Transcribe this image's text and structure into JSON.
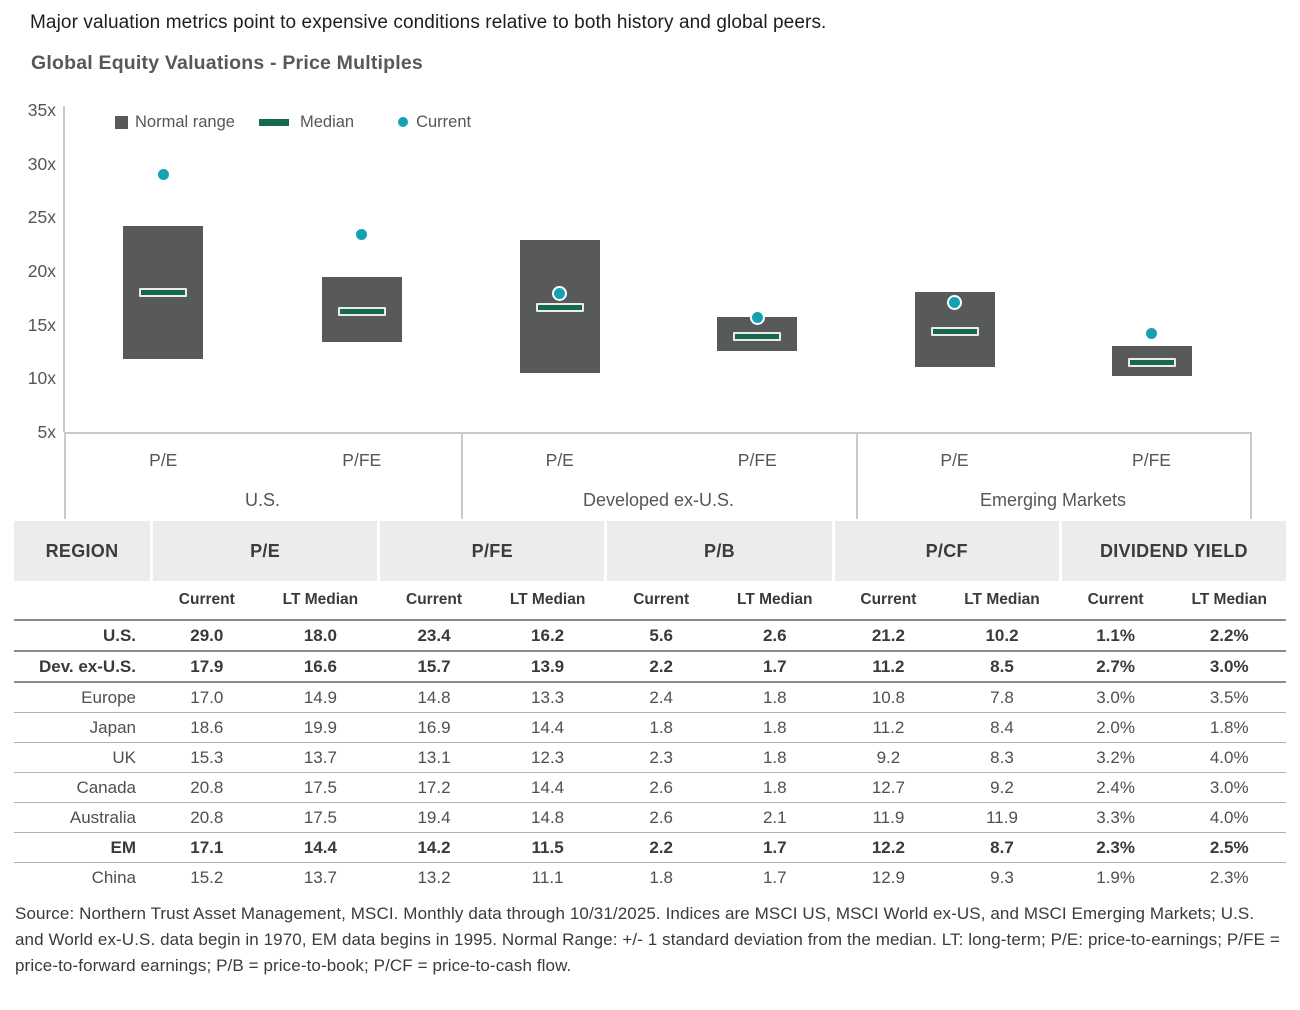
{
  "page": {
    "headline": "Major valuation metrics point to expensive conditions relative to both history and global peers.",
    "chart_title": "Global Equity Valuations - Price Multiples",
    "source_note": "Source: Northern Trust Asset Management, MSCI. Monthly data through 10/31/2025. Indices are MSCI US, MSCI World ex-US, and MSCI Emerging Markets; U.S. and World ex-U.S. data begin in 1970, EM data begins in 1995. Normal Range: +/- 1 standard deviation from the median.  LT: long-term; P/E: price-to-earnings; P/FE = price-to-forward earnings; P/B = price-to-book; P/CF = price-to-cash flow."
  },
  "colors": {
    "normal_range_bar": "#58595b",
    "median_green": "#17694e",
    "current_teal": "#13a2b4",
    "axis_gray": "#c9c9c9",
    "header_band_gray": "#ececec"
  },
  "chart_data": {
    "type": "bar",
    "subtype": "floating-range-with-median-and-current-dot",
    "title": "Global Equity Valuations - Price Multiples",
    "ylim": [
      5,
      35
    ],
    "ytick_values": [
      5,
      10,
      15,
      20,
      25,
      30,
      35
    ],
    "ytick_labels": [
      "5x",
      "10x",
      "15x",
      "20x",
      "25x",
      "30x",
      "35x"
    ],
    "grid": "off",
    "legend_position": "top-left-inside",
    "legend": [
      "Normal range",
      "Median",
      "Current"
    ],
    "groups": [
      {
        "label": "U.S.",
        "metrics": [
          {
            "label": "P/E",
            "range_low": 11.8,
            "range_high": 24.2,
            "median": 18.0,
            "current": 29.0
          },
          {
            "label": "P/FE",
            "range_low": 13.4,
            "range_high": 19.4,
            "median": 16.2,
            "current": 23.4
          }
        ]
      },
      {
        "label": "Developed ex-U.S.",
        "metrics": [
          {
            "label": "P/E",
            "range_low": 10.5,
            "range_high": 22.9,
            "median": 16.6,
            "current": 17.9
          },
          {
            "label": "P/FE",
            "range_low": 12.5,
            "range_high": 15.7,
            "median": 13.9,
            "current": 15.7
          }
        ]
      },
      {
        "label": "Emerging Markets",
        "metrics": [
          {
            "label": "P/E",
            "range_low": 11.1,
            "range_high": 18.0,
            "median": 14.4,
            "current": 17.1
          },
          {
            "label": "P/FE",
            "range_low": 10.2,
            "range_high": 13.0,
            "median": 11.5,
            "current": 14.2
          }
        ]
      }
    ]
  },
  "table": {
    "region_header": "REGION",
    "group_headers": [
      "P/E",
      "P/FE",
      "P/B",
      "P/CF",
      "DIVIDEND YIELD"
    ],
    "sub_headers": [
      "Current",
      "LT Median"
    ],
    "rows": [
      {
        "region": "U.S.",
        "bold": true,
        "values": [
          "29.0",
          "18.0",
          "23.4",
          "16.2",
          "5.6",
          "2.6",
          "21.2",
          "10.2",
          "1.1%",
          "2.2%"
        ]
      },
      {
        "region": "Dev. ex-U.S.",
        "bold": true,
        "values": [
          "17.9",
          "16.6",
          "15.7",
          "13.9",
          "2.2",
          "1.7",
          "11.2",
          "8.5",
          "2.7%",
          "3.0%"
        ]
      },
      {
        "region": "Europe",
        "bold": false,
        "values": [
          "17.0",
          "14.9",
          "14.8",
          "13.3",
          "2.4",
          "1.8",
          "10.8",
          "7.8",
          "3.0%",
          "3.5%"
        ]
      },
      {
        "region": "Japan",
        "bold": false,
        "values": [
          "18.6",
          "19.9",
          "16.9",
          "14.4",
          "1.8",
          "1.8",
          "11.2",
          "8.4",
          "2.0%",
          "1.8%"
        ]
      },
      {
        "region": "UK",
        "bold": false,
        "values": [
          "15.3",
          "13.7",
          "13.1",
          "12.3",
          "2.3",
          "1.8",
          "9.2",
          "8.3",
          "3.2%",
          "4.0%"
        ]
      },
      {
        "region": "Canada",
        "bold": false,
        "values": [
          "20.8",
          "17.5",
          "17.2",
          "14.4",
          "2.6",
          "1.8",
          "12.7",
          "9.2",
          "2.4%",
          "3.0%"
        ]
      },
      {
        "region": "Australia",
        "bold": false,
        "values": [
          "20.8",
          "17.5",
          "19.4",
          "14.8",
          "2.6",
          "2.1",
          "11.9",
          "11.9",
          "3.3%",
          "4.0%"
        ]
      },
      {
        "region": "EM",
        "bold": true,
        "values": [
          "17.1",
          "14.4",
          "14.2",
          "11.5",
          "2.2",
          "1.7",
          "12.2",
          "8.7",
          "2.3%",
          "2.5%"
        ]
      },
      {
        "region": "China",
        "bold": false,
        "values": [
          "15.2",
          "13.7",
          "13.2",
          "11.1",
          "1.8",
          "1.7",
          "12.9",
          "9.3",
          "1.9%",
          "2.3%"
        ]
      }
    ]
  }
}
